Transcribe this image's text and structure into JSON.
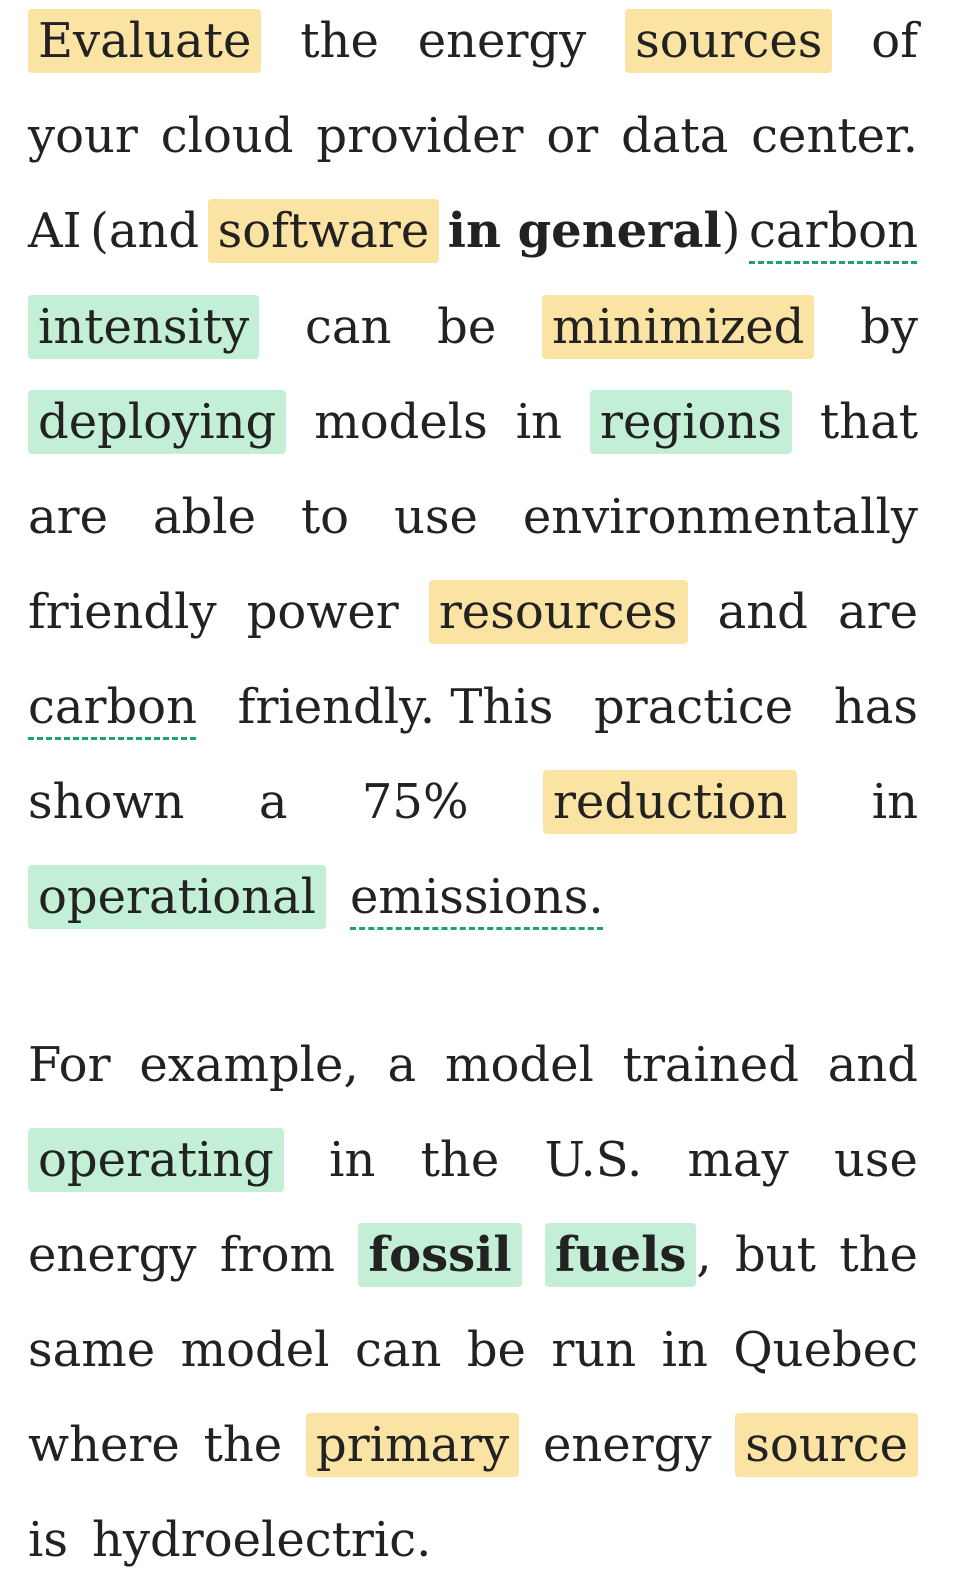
{
  "paragraph1": {
    "line1": [
      "Evaluate",
      "the",
      "energy",
      "sources",
      "of"
    ],
    "line2": [
      "your",
      "cloud",
      "provider",
      "or",
      "data",
      "center."
    ],
    "line3": [
      "AI",
      "(and",
      "software",
      "in general",
      ")",
      "carbon"
    ],
    "line4": [
      "intensity",
      "can",
      "be",
      "minimized",
      "by"
    ],
    "line5": [
      "deploying",
      "models",
      "in",
      "regions",
      "that"
    ],
    "line6": [
      "are",
      "able",
      "to",
      "use",
      "environmentally"
    ],
    "line7": [
      "friendly",
      "power",
      "resources",
      "and",
      "are"
    ],
    "line8": [
      "carbon",
      "friendly.",
      "This",
      "practice",
      "has"
    ],
    "line9": [
      "shown",
      "a",
      "75%",
      "reduction",
      "in"
    ],
    "line10": [
      "operational",
      "emissions."
    ]
  },
  "paragraph2": {
    "line1": [
      "For",
      "example,",
      "a",
      "model",
      "trained",
      "and"
    ],
    "line2": [
      "operating",
      "in",
      "the",
      "U.S.",
      "may",
      "use"
    ],
    "line3": [
      "energy",
      "from",
      "fossil",
      "fuels",
      ",",
      "but",
      "the"
    ],
    "line4": [
      "same",
      "model",
      "can",
      "be",
      "run",
      "in",
      "Quebec"
    ],
    "line5": [
      "where",
      "the",
      "primary",
      "energy",
      "source"
    ],
    "line6": [
      "is",
      "hydroelectric."
    ]
  },
  "colors": {
    "highlight_yellow": "#fbe3a3",
    "highlight_green": "#c3efd6",
    "underline_green": "#1aa36e",
    "text": "#222222"
  }
}
